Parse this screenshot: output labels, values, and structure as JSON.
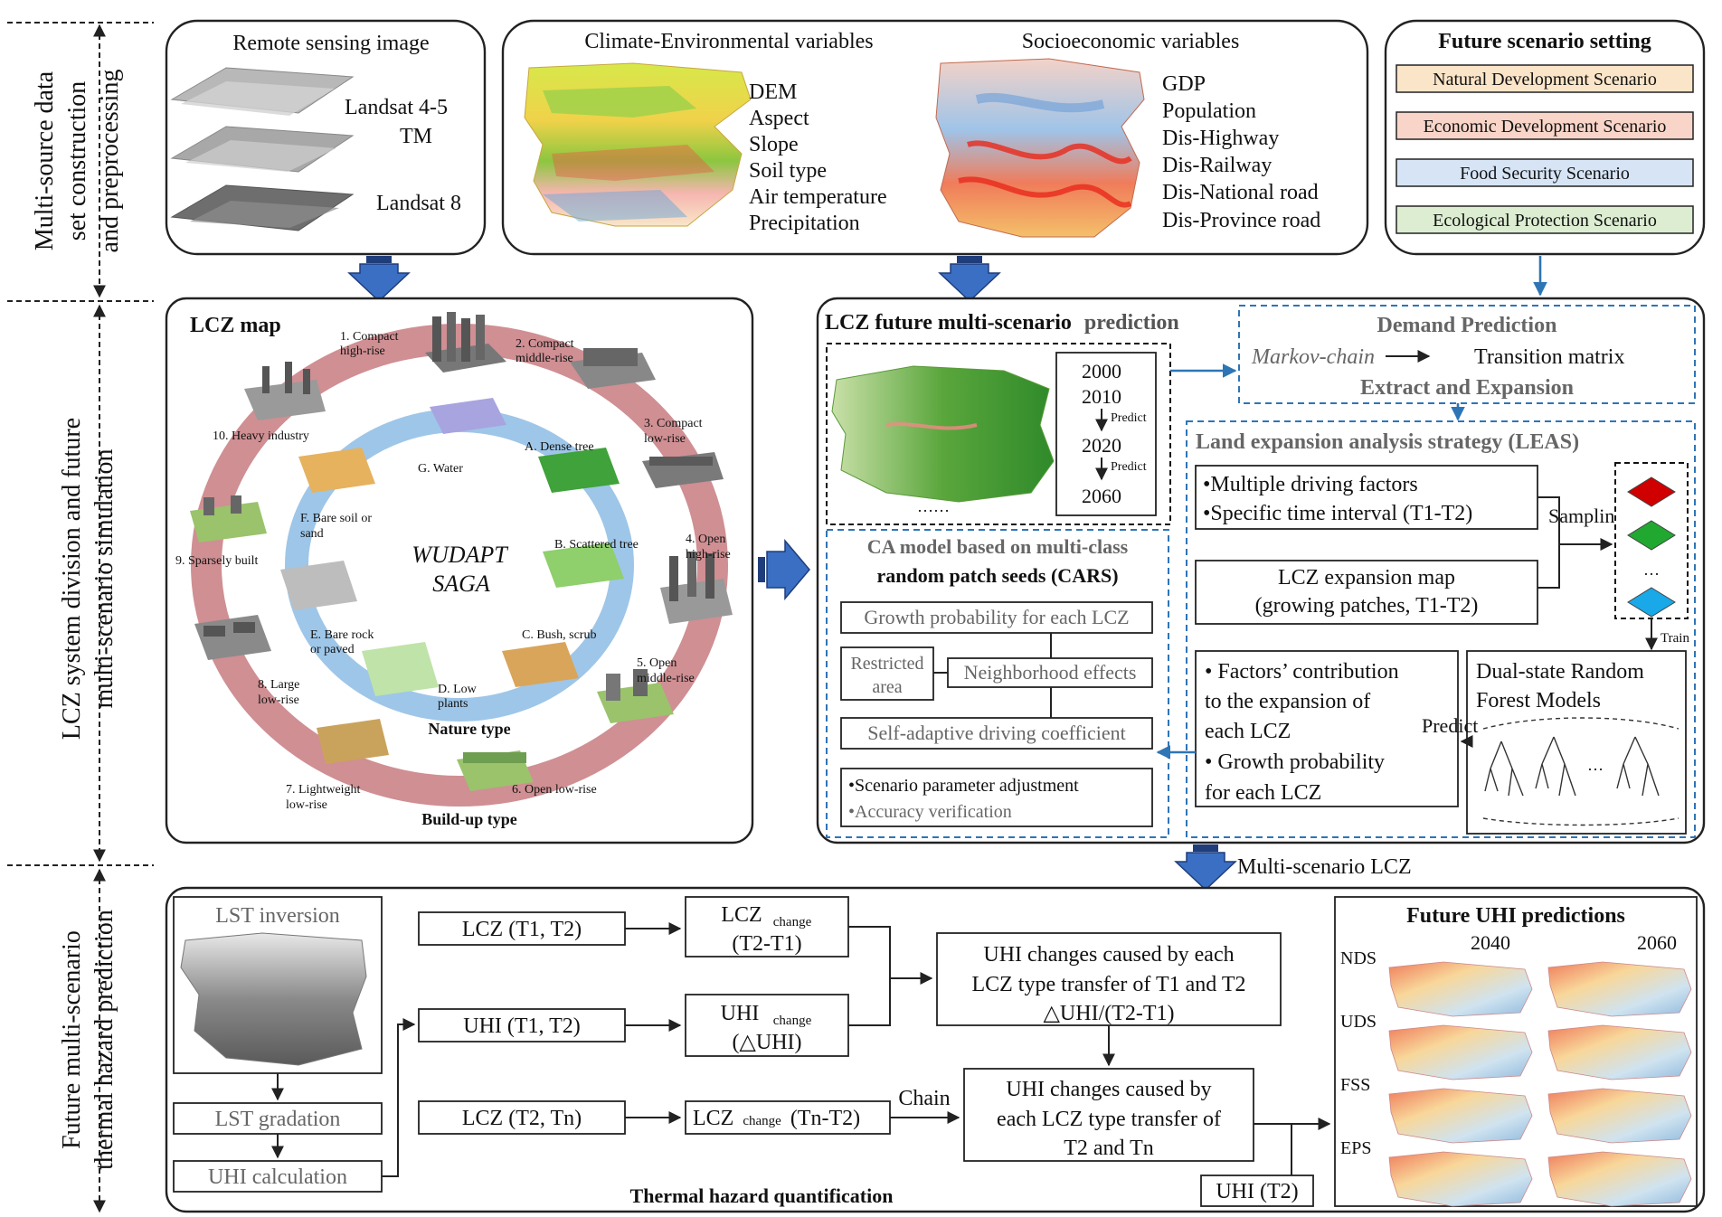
{
  "side_labels": {
    "row1": [
      "Multi-source data",
      "set construction",
      "and preprocessing"
    ],
    "row2": [
      "LCZ system division and future",
      "multi-scenario simulation"
    ],
    "row3": [
      "Future multi-scenario",
      "thermal hazard prediction"
    ]
  },
  "remote_sensing": {
    "title": "Remote sensing image",
    "landsat45_a": "Landsat 4-5",
    "landsat45_b": "TM",
    "landsat8": "Landsat 8"
  },
  "variables": {
    "climate_title": "Climate-Environmental variables",
    "climate_items": [
      "DEM",
      "Aspect",
      "Slope",
      "Soil type",
      "Air temperature",
      "Precipitation"
    ],
    "socio_title": "Socioeconomic variables",
    "socio_items": [
      "GDP",
      "Population",
      "Dis-Highway",
      "Dis-Railway",
      "Dis-National road",
      "Dis-Province road"
    ]
  },
  "scenarios": {
    "title": "Future scenario setting",
    "items": [
      {
        "label": "Natural Development Scenario",
        "color": "#fbe5c8"
      },
      {
        "label": "Economic Development Scenario",
        "color": "#f8d5c8"
      },
      {
        "label": "Food Security Scenario",
        "color": "#d6e4f5"
      },
      {
        "label": "Ecological Protection Scenario",
        "color": "#dcedd2"
      }
    ]
  },
  "lcz_map": {
    "title": "LCZ map",
    "center_1": "WUDAPT",
    "center_2": "SAGA",
    "built_label": "Build-up type",
    "nature_label": "Nature type",
    "built_types": [
      "1. Compact",
      "high-rise",
      "2. Compact",
      "middle-rise",
      "3. Compact",
      "low-rise",
      "4. Open",
      "high-rise",
      "5. Open",
      "middle-rise",
      "6. Open low-rise",
      "7. Lightweight",
      "low-rise",
      "8. Large",
      "low-rise",
      "9. Sparsely built",
      "10. Heavy industry"
    ],
    "nature_types": [
      "A. Dense tree",
      "B. Scattered tree",
      "C. Bush, scrub",
      "D. Low",
      "plants",
      "E. Bare rock",
      "or paved",
      "F. Bare soil or",
      "sand",
      "G. Water"
    ]
  },
  "prediction": {
    "title_bold": "LCZ future multi-scenario",
    "title_rest": "prediction",
    "years": [
      "2000",
      "2010",
      "2020",
      "2060"
    ],
    "predict": "Predict",
    "ellipsis": "……"
  },
  "demand": {
    "title": "Demand Prediction",
    "markov": "Markov-chain",
    "matrix": "Transition matrix",
    "extract": "Extract and Expansion"
  },
  "leas": {
    "title": "Land expansion analysis strategy (LEAS)",
    "factors_1": "•Multiple driving factors",
    "factors_2": "•Specific time interval (T1-T2)",
    "sampling": "Sampling",
    "dots": "…",
    "train": "Train",
    "expansion_1": "LCZ expansion map",
    "expansion_2": "(growing patches, T1-T2)",
    "contrib": [
      "• Factors’ contribution",
      "to the expansion of",
      "each LCZ",
      "• Growth probability",
      "for each LCZ"
    ],
    "predict": "Predict",
    "rf_1": "Dual-state Random",
    "rf_2": "Forest Models",
    "rf_dots": "…"
  },
  "cars": {
    "title_1": "CA model based on multi-class",
    "title_2": "random patch seeds (CARS)",
    "growth": "Growth probability for each LCZ",
    "restricted_1": "Restricted",
    "restricted_2": "area",
    "neighborhood": "Neighborhood effects",
    "adaptive": "Self-adaptive driving coefficient",
    "scenario_1": "•Scenario parameter adjustment",
    "scenario_2": "•Accuracy verification"
  },
  "multi_scenario_label": "Multi-scenario LCZ",
  "thermal": {
    "lst_inversion": "LST inversion",
    "lst_gradation": "LST gradation",
    "uhi_calc": "UHI calculation",
    "lcz_t1t2": "LCZ (T1, T2)",
    "uhi_t1t2": "UHI (T1, T2)",
    "lcz_t2tn": "LCZ (T2, Tn)",
    "lcz_change_main": "LCZ",
    "change_sub": "change",
    "t2t1": "(T2-T1)",
    "uhi_change_main": "UHI",
    "delta_uhi": "(△UHI)",
    "lcz_change_tn_tail": "(Tn-T2)",
    "chain": "Chain",
    "uhi_caused_1": [
      "UHI changes caused by each",
      "LCZ type transfer of T1 and T2",
      "△UHI/(T2-T1)"
    ],
    "uhi_caused_2": [
      "UHI changes caused by",
      "each LCZ type transfer of",
      "T2 and Tn"
    ],
    "uhi_t2": "UHI (T2)",
    "section_title": "Thermal hazard quantification"
  },
  "future_uhi": {
    "title": "Future UHI predictions",
    "years": [
      "2040",
      "2060"
    ],
    "scenarios": [
      "NDS",
      "UDS",
      "FSS",
      "EPS"
    ]
  },
  "colors": {
    "accent_blue": "#2e75b6",
    "arrow_blue": "#3a6fc4",
    "ring_red": "#cf8f93",
    "ring_blue": "#9ec6e8"
  }
}
